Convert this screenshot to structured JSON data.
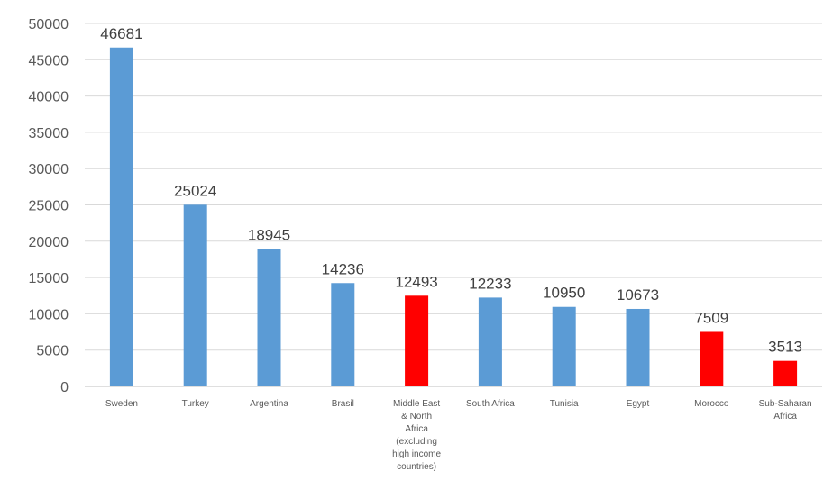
{
  "chart_data": {
    "type": "bar",
    "title": "",
    "xlabel": "",
    "ylabel": "",
    "ylim": [
      0,
      50000
    ],
    "yticks": [
      0,
      5000,
      10000,
      15000,
      20000,
      25000,
      30000,
      35000,
      40000,
      45000,
      50000
    ],
    "grid": true,
    "categories": [
      [
        "Sweden"
      ],
      [
        "Turkey"
      ],
      [
        "Argentina"
      ],
      [
        "Brasil"
      ],
      [
        "Middle East",
        "& North",
        "Africa",
        "(excluding",
        "high income",
        "countries)"
      ],
      [
        "South Africa"
      ],
      [
        "Tunisia"
      ],
      [
        "Egypt"
      ],
      [
        "Morocco"
      ],
      [
        "Sub-Saharan",
        "Africa"
      ]
    ],
    "values": [
      46681,
      25024,
      18945,
      14236,
      12493,
      12233,
      10950,
      10673,
      7509,
      3513
    ],
    "data_labels": [
      "46681",
      "25024",
      "18945",
      "14236",
      "12493",
      "12233",
      "10950",
      "10673",
      "7509",
      "3513"
    ],
    "bar_colors": [
      "#5b9bd5",
      "#5b9bd5",
      "#5b9bd5",
      "#5b9bd5",
      "#ff0000",
      "#5b9bd5",
      "#5b9bd5",
      "#5b9bd5",
      "#ff0000",
      "#ff0000"
    ]
  }
}
